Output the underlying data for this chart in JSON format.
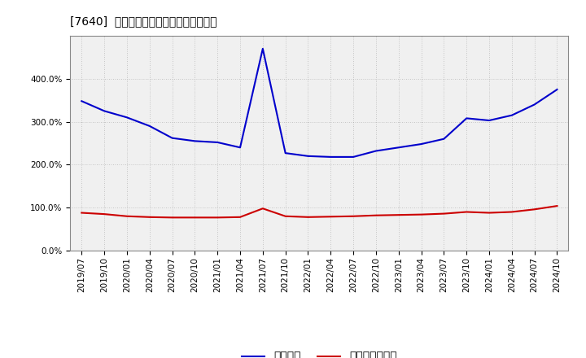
{
  "title": "[7640]  固定比率、固定長期適合率の推移",
  "x_labels": [
    "2019/07",
    "2019/10",
    "2020/01",
    "2020/04",
    "2020/07",
    "2020/10",
    "2021/01",
    "2021/04",
    "2021/07",
    "2021/10",
    "2022/01",
    "2022/04",
    "2022/07",
    "2022/10",
    "2023/01",
    "2023/04",
    "2023/07",
    "2023/10",
    "2024/01",
    "2024/04",
    "2024/07",
    "2024/10"
  ],
  "kotei_hiritsu": [
    348,
    325,
    310,
    290,
    262,
    255,
    252,
    240,
    470,
    227,
    220,
    218,
    218,
    232,
    240,
    248,
    260,
    308,
    303,
    315,
    340,
    375
  ],
  "kotei_choki": [
    88,
    85,
    80,
    78,
    77,
    77,
    77,
    78,
    98,
    80,
    78,
    79,
    80,
    82,
    83,
    84,
    86,
    90,
    88,
    90,
    96,
    104
  ],
  "blue_color": "#0000cc",
  "red_color": "#cc0000",
  "bg_color": "#ffffff",
  "plot_bg_color": "#f0f0f0",
  "grid_color": "#aaaaaa",
  "legend_labels": [
    "固定比率",
    "固定長期適合率"
  ],
  "ylim": [
    0,
    500
  ],
  "yticks": [
    0,
    100,
    200,
    300,
    400
  ],
  "title_fontsize": 12,
  "tick_fontsize": 7.5,
  "legend_fontsize": 10
}
